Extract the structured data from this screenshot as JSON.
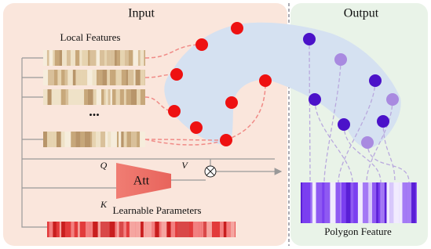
{
  "panels": {
    "input": "Input",
    "output": "Output"
  },
  "labels": {
    "local_features": "Local Features",
    "ellipsis": "...",
    "q": "Q",
    "v": "V",
    "k": "K",
    "att": "Att",
    "learnable_parameters": "Learnable Parameters",
    "polygon_feature": "Polygon Feature"
  }
}
